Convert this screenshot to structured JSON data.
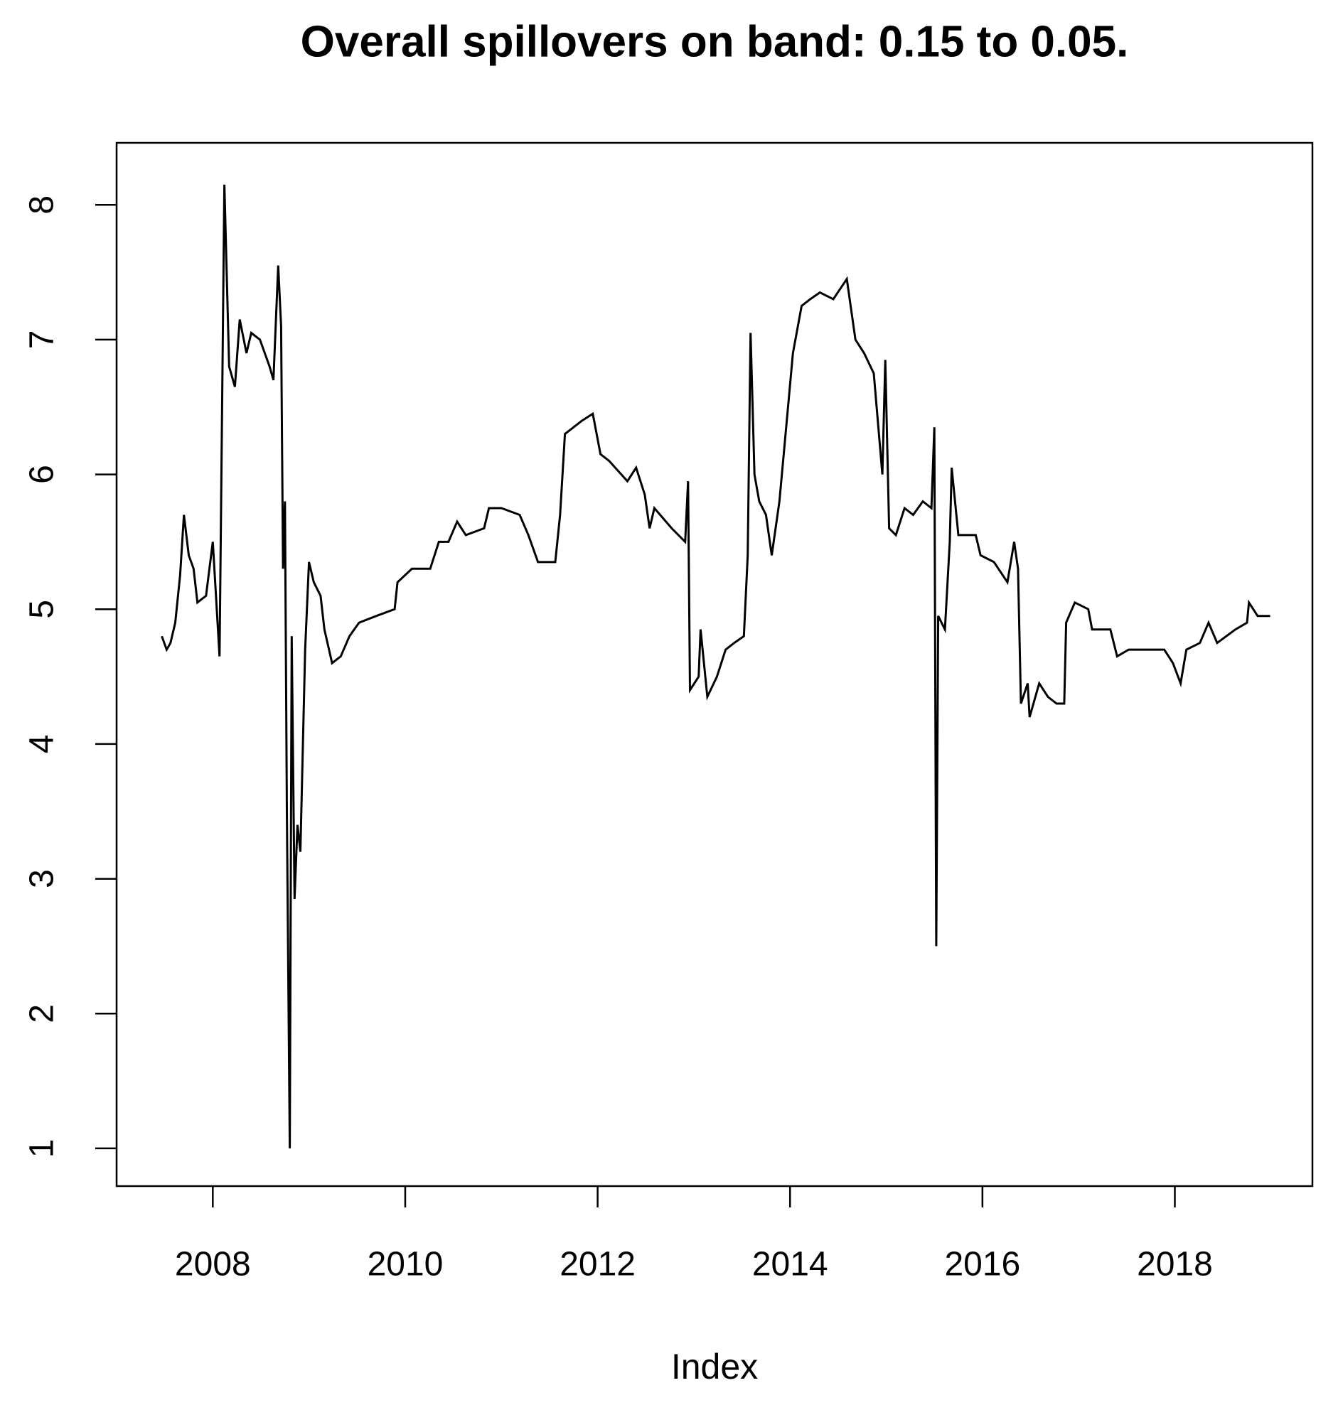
{
  "chart_data": {
    "type": "line",
    "title": "Overall spillovers on band: 0.15 to 0.05.",
    "x_label": "Index",
    "xlim": [
      2007.0,
      2019.43
    ],
    "ylim": [
      0.72,
      8.46
    ],
    "xticks": [
      2008,
      2010,
      2012,
      2014,
      2016,
      2018
    ],
    "yticks": [
      1,
      2,
      3,
      4,
      5,
      6,
      7,
      8
    ],
    "grid": false,
    "color": "#000000",
    "x": [
      2007.47,
      2007.52,
      2007.56,
      2007.61,
      2007.66,
      2007.7,
      2007.75,
      2007.8,
      2007.84,
      2007.93,
      2008.0,
      2008.07,
      2008.12,
      2008.17,
      2008.23,
      2008.28,
      2008.35,
      2008.4,
      2008.49,
      2008.59,
      2008.63,
      2008.68,
      2008.71,
      2008.73,
      2008.75,
      2008.77,
      2008.8,
      2008.82,
      2008.85,
      2008.88,
      2008.91,
      2008.96,
      2009.0,
      2009.05,
      2009.12,
      2009.16,
      2009.24,
      2009.33,
      2009.42,
      2009.52,
      2009.7,
      2009.89,
      2009.92,
      2010.07,
      2010.26,
      2010.35,
      2010.45,
      2010.54,
      2010.63,
      2010.82,
      2010.87,
      2011.0,
      2011.19,
      2011.28,
      2011.38,
      2011.56,
      2011.61,
      2011.66,
      2011.84,
      2011.95,
      2012.03,
      2012.12,
      2012.31,
      2012.4,
      2012.49,
      2012.54,
      2012.59,
      2012.77,
      2012.91,
      2012.94,
      2012.96,
      2013.05,
      2013.07,
      2013.14,
      2013.24,
      2013.33,
      2013.42,
      2013.52,
      2013.56,
      2013.59,
      2013.63,
      2013.68,
      2013.75,
      2013.81,
      2013.89,
      2013.96,
      2014.03,
      2014.12,
      2014.21,
      2014.31,
      2014.45,
      2014.59,
      2014.68,
      2014.77,
      2014.87,
      2014.96,
      2014.99,
      2015.03,
      2015.1,
      2015.19,
      2015.28,
      2015.38,
      2015.47,
      2015.5,
      2015.52,
      2015.54,
      2015.61,
      2015.66,
      2015.68,
      2015.75,
      2015.93,
      2015.98,
      2016.12,
      2016.26,
      2016.33,
      2016.37,
      2016.4,
      2016.47,
      2016.49,
      2016.59,
      2016.68,
      2016.77,
      2016.85,
      2016.87,
      2016.96,
      2017.1,
      2017.14,
      2017.33,
      2017.4,
      2017.52,
      2017.7,
      2017.89,
      2017.98,
      2018.06,
      2018.12,
      2018.26,
      2018.35,
      2018.44,
      2018.63,
      2018.75,
      2018.77,
      2018.86,
      2018.99
    ],
    "values": [
      4.8,
      4.7,
      4.75,
      4.9,
      5.25,
      5.7,
      5.4,
      5.3,
      5.05,
      5.1,
      5.5,
      4.65,
      8.15,
      6.8,
      6.65,
      7.15,
      6.9,
      7.05,
      7.0,
      6.8,
      6.7,
      7.55,
      7.1,
      5.3,
      5.8,
      3.5,
      1.0,
      4.8,
      2.85,
      3.4,
      3.2,
      4.7,
      5.35,
      5.2,
      5.1,
      4.85,
      4.6,
      4.65,
      4.8,
      4.9,
      4.95,
      5.0,
      5.2,
      5.3,
      5.3,
      5.5,
      5.5,
      5.65,
      5.55,
      5.6,
      5.75,
      5.75,
      5.7,
      5.55,
      5.35,
      5.35,
      5.7,
      6.3,
      6.4,
      6.45,
      6.15,
      6.1,
      5.95,
      6.05,
      5.85,
      5.6,
      5.75,
      5.6,
      5.5,
      5.95,
      4.4,
      4.5,
      4.85,
      4.35,
      4.5,
      4.7,
      4.75,
      4.8,
      5.4,
      7.05,
      6.0,
      5.8,
      5.7,
      5.4,
      5.8,
      6.35,
      6.9,
      7.25,
      7.3,
      7.35,
      7.3,
      7.45,
      7.0,
      6.9,
      6.75,
      6.0,
      6.85,
      5.6,
      5.55,
      5.75,
      5.7,
      5.8,
      5.75,
      6.35,
      2.5,
      4.95,
      4.85,
      5.5,
      6.05,
      5.55,
      5.55,
      5.4,
      5.35,
      5.2,
      5.5,
      5.3,
      4.3,
      4.45,
      4.2,
      4.45,
      4.35,
      4.3,
      4.3,
      4.9,
      5.05,
      5.0,
      4.85,
      4.85,
      4.65,
      4.7,
      4.7,
      4.7,
      4.6,
      4.45,
      4.7,
      4.75,
      4.9,
      4.75,
      4.85,
      4.9,
      5.05,
      4.95,
      4.95
    ]
  }
}
